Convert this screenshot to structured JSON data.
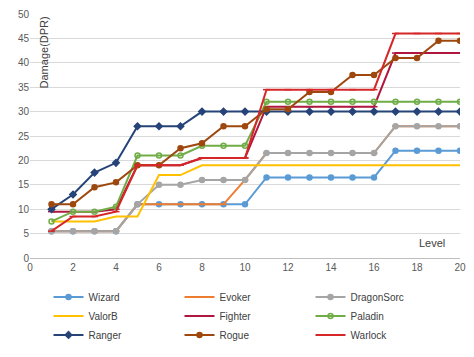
{
  "chart_data": {
    "type": "line",
    "xlabel": "Level",
    "ylabel": "Damage(DPR)",
    "x": [
      1,
      2,
      3,
      4,
      5,
      6,
      7,
      8,
      9,
      10,
      11,
      12,
      13,
      14,
      15,
      16,
      17,
      18,
      19,
      20
    ],
    "xlim": [
      0,
      20
    ],
    "xticks": [
      0,
      2,
      4,
      6,
      8,
      10,
      12,
      14,
      16,
      18,
      20
    ],
    "ylim": [
      0,
      50
    ],
    "yticks": [
      0,
      5,
      10,
      15,
      20,
      25,
      30,
      35,
      40,
      45,
      50
    ],
    "grid": true,
    "legend": "bottom",
    "series": [
      {
        "name": "Wizard",
        "color": "#5b9bd5",
        "marker": "circle",
        "values": [
          5.5,
          5.5,
          5.5,
          5.5,
          11,
          11,
          11,
          11,
          11,
          11,
          16.5,
          16.5,
          16.5,
          16.5,
          16.5,
          16.5,
          22,
          22,
          22,
          22
        ]
      },
      {
        "name": "Evoker",
        "color": "#ed7d31",
        "marker": "line-ew",
        "values": [
          5.5,
          5.5,
          5.5,
          5.5,
          11,
          11,
          11,
          11,
          11,
          16,
          21.5,
          21.5,
          21.5,
          21.5,
          21.5,
          21.5,
          27,
          27,
          27,
          27
        ]
      },
      {
        "name": "DragonSorc",
        "color": "#a5a5a5",
        "marker": "circle",
        "values": [
          5.5,
          5.5,
          5.5,
          5.5,
          11,
          15,
          15,
          16,
          16,
          16,
          21.5,
          21.5,
          21.5,
          21.5,
          21.5,
          21.5,
          27,
          27,
          27,
          27
        ]
      },
      {
        "name": "ValorB",
        "color": "#ffc000",
        "marker": "none",
        "values": [
          7.5,
          7.5,
          7.5,
          8.5,
          8.5,
          17,
          17,
          19,
          19,
          19,
          19,
          19,
          19,
          19,
          19,
          19,
          19,
          19,
          19,
          19
        ]
      },
      {
        "name": "Fighter",
        "color": "#b0173f",
        "marker": "line-ew",
        "values": [
          9.5,
          9.5,
          9.5,
          10,
          19,
          19,
          19,
          20.5,
          20.5,
          20.5,
          31,
          31,
          31,
          31,
          31,
          31,
          42,
          42,
          42,
          42
        ]
      },
      {
        "name": "Paladin",
        "color": "#70ad47",
        "marker": "circle-open",
        "values": [
          7.5,
          9.5,
          9.5,
          10.5,
          21,
          21,
          21,
          23,
          23,
          23,
          32,
          32,
          32,
          32,
          32,
          32,
          32,
          32,
          32,
          32
        ]
      },
      {
        "name": "Ranger",
        "color": "#264478",
        "marker": "diamond",
        "values": [
          10,
          13,
          17.5,
          19.5,
          27,
          27,
          27,
          30,
          30,
          30,
          30,
          30,
          30,
          30,
          30,
          30,
          30,
          30,
          30,
          30
        ]
      },
      {
        "name": "Rogue",
        "color": "#9e480e",
        "marker": "circle",
        "values": [
          11,
          11,
          14.5,
          15.5,
          19,
          19,
          22.5,
          23.5,
          27,
          27,
          30.5,
          30.5,
          34,
          34,
          37.5,
          37.5,
          41,
          41,
          44.5,
          44.5
        ]
      },
      {
        "name": "Warlock",
        "color": "#d62728",
        "marker": "line-ew",
        "values": [
          5.5,
          8.5,
          8.5,
          9.5,
          19,
          19,
          19,
          20.5,
          20.5,
          20.5,
          34.5,
          34.5,
          34.5,
          34.5,
          34.5,
          34.5,
          46,
          46,
          46,
          46
        ]
      }
    ]
  }
}
